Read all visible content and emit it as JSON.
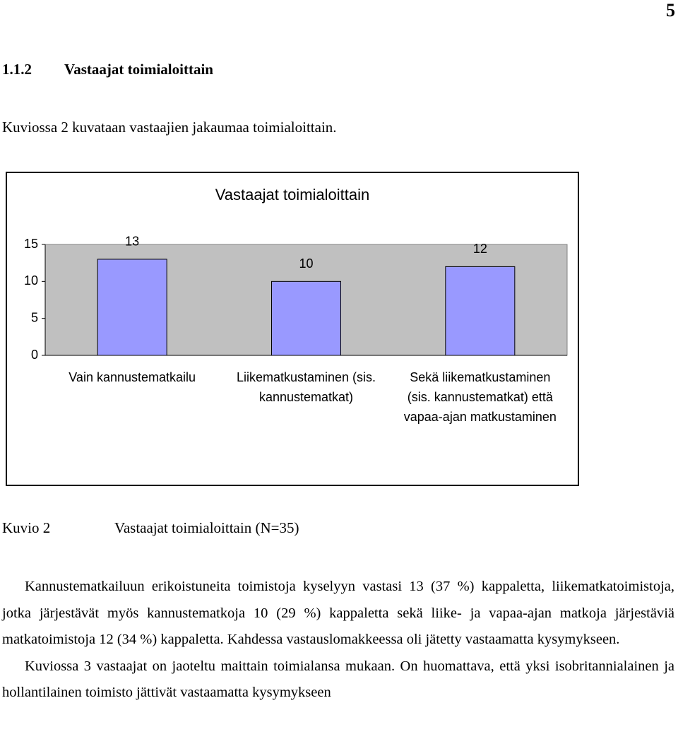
{
  "page_number": "5",
  "heading": {
    "number": "1.1.2",
    "title": "Vastaajat toimialoittain"
  },
  "intro": "Kuviossa 2 kuvataan vastaajien jakaumaa toimialoittain.",
  "chart_data": {
    "type": "bar",
    "title": "Vastaajat toimialoittain",
    "categories": [
      "Vain kannustematkailu",
      "Liikematkustaminen (sis. kannustematkat)",
      "Sekä liikematkustaminen (sis. kannustematkat) että vapaa-ajan matkustaminen"
    ],
    "values": [
      13,
      10,
      12
    ],
    "color": "#9999ff",
    "background": "#c0c0c0",
    "ylim": [
      0,
      15
    ],
    "yticks": [
      0,
      5,
      10,
      15
    ],
    "grid": false
  },
  "caption": {
    "label": "Kuvio 2",
    "text": "Vastaajat toimialoittain (N=35)"
  },
  "paragraphs": [
    "Kannustematkailuun erikoistuneita toimistoja kyselyyn vastasi 13 (37 %) kappaletta, liikematkatoimistoja, jotka järjestävät myös kannustematkoja 10 (29 %) kappaletta sekä liike- ja vapaa-ajan matkoja järjestäviä matkatoimistoja 12 (34 %) kappaletta. Kahdessa vastauslomakkeessa oli jätetty vastaamatta kysymykseen.",
    "Kuviossa 3 vastaajat on jaoteltu maittain toimialansa mukaan. On huomattava, että yksi isobritannialainen ja hollantilainen toimisto jättivät vastaamatta kysymykseen"
  ]
}
